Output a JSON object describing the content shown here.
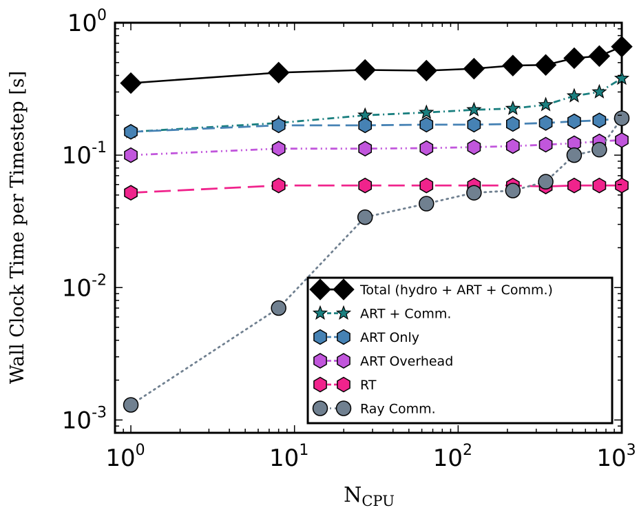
{
  "chart_data": {
    "type": "line",
    "xscale": "log",
    "yscale": "log",
    "xlim": [
      0.8,
      1000
    ],
    "ylim": [
      0.0008,
      1
    ],
    "xlabel": "N",
    "xlabel_sub": "CPU",
    "ylabel": "Wall Clock Time per Timestep [s]",
    "legend_position": "bottom-right",
    "grid": false,
    "xticks": [
      {
        "value": 1,
        "base": "10",
        "exp": "0"
      },
      {
        "value": 10,
        "base": "10",
        "exp": "1"
      },
      {
        "value": 100,
        "base": "10",
        "exp": "2"
      },
      {
        "value": 1000,
        "base": "10",
        "exp": "3"
      }
    ],
    "yticks": [
      {
        "value": 0.001,
        "base": "10",
        "exp": "-3"
      },
      {
        "value": 0.01,
        "base": "10",
        "exp": "-2"
      },
      {
        "value": 0.1,
        "base": "10",
        "exp": "-1"
      },
      {
        "value": 1,
        "base": "10",
        "exp": "0"
      }
    ],
    "x": [
      1,
      8,
      27,
      64,
      125,
      216,
      343,
      512,
      729,
      1000
    ],
    "series": [
      {
        "name": "Total (hydro + ART + Comm.)",
        "color": "#000000",
        "line_style": "solid",
        "marker": "diamond",
        "x": [
          1,
          8,
          27,
          64,
          125,
          216,
          343,
          512,
          729,
          1000
        ],
        "values": [
          0.35,
          0.42,
          0.44,
          0.435,
          0.45,
          0.475,
          0.48,
          0.54,
          0.56,
          0.66
        ]
      },
      {
        "name": "ART + Comm.",
        "color": "#1a7f7f",
        "line_style": "dashdot",
        "marker": "star",
        "x": [
          1,
          8,
          27,
          64,
          125,
          216,
          343,
          512,
          729,
          1000
        ],
        "values": [
          0.15,
          0.175,
          0.2,
          0.21,
          0.22,
          0.225,
          0.24,
          0.28,
          0.3,
          0.38
        ]
      },
      {
        "name": "ART Only",
        "color": "#4682b4",
        "line_style": "dashed",
        "marker": "hexagon",
        "x": [
          1,
          8,
          27,
          64,
          125,
          216,
          343,
          512,
          729,
          1000
        ],
        "values": [
          0.15,
          0.168,
          0.168,
          0.17,
          0.17,
          0.172,
          0.175,
          0.18,
          0.183,
          0.19
        ]
      },
      {
        "name": "ART Overhead",
        "color": "#c156dc",
        "line_style": "dashdotdot",
        "marker": "hexagon",
        "x": [
          1,
          8,
          27,
          64,
          125,
          216,
          343,
          512,
          729,
          1000
        ],
        "values": [
          0.1,
          0.112,
          0.112,
          0.113,
          0.115,
          0.117,
          0.12,
          0.123,
          0.127,
          0.13
        ]
      },
      {
        "name": "RT",
        "color": "#f0238c",
        "line_style": "longdash",
        "marker": "hexagon",
        "x": [
          1,
          8,
          27,
          64,
          125,
          216,
          343,
          512,
          729,
          1000
        ],
        "values": [
          0.052,
          0.059,
          0.059,
          0.059,
          0.059,
          0.059,
          0.058,
          0.059,
          0.059,
          0.059
        ]
      },
      {
        "name": "Ray Comm.",
        "color": "#708090",
        "line_style": "dotted",
        "marker": "circle",
        "x": [
          1,
          8,
          27,
          64,
          125,
          216,
          343,
          512,
          729,
          1000
        ],
        "values": [
          0.0013,
          0.007,
          0.034,
          0.043,
          0.052,
          0.054,
          0.063,
          0.1,
          0.11,
          0.19
        ]
      }
    ]
  }
}
